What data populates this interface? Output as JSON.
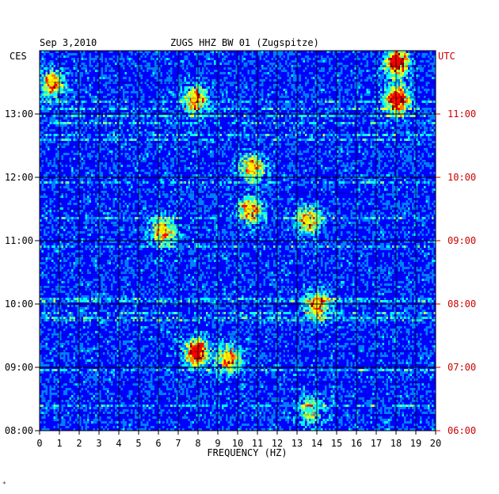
{
  "header": {
    "date": "Sep 3,2010",
    "station": "ZUGS HHZ BW 01 (Zugspitze)"
  },
  "chart_data": {
    "type": "heatmap",
    "title": "ZUGS HHZ BW 01 (Zugspitze)",
    "date": "Sep 3,2010",
    "xlabel": "FREQUENCY (HZ)",
    "xlim": [
      0,
      20
    ],
    "x_ticks": [
      "0",
      "1",
      "2",
      "3",
      "4",
      "5",
      "6",
      "7",
      "8",
      "9",
      "10",
      "11",
      "12",
      "13",
      "14",
      "15",
      "16",
      "17",
      "18",
      "19",
      "20"
    ],
    "left_axis": {
      "label": "CES",
      "ticks": [
        "08:00",
        "09:00",
        "10:00",
        "11:00",
        "12:00",
        "13:00"
      ],
      "range": [
        "08:00",
        "14:00"
      ]
    },
    "right_axis": {
      "label": "UTC",
      "ticks": [
        "06:00",
        "07:00",
        "08:00",
        "09:00",
        "10:00",
        "11:00"
      ],
      "range": [
        "06:00",
        "12:00"
      ]
    },
    "colorscale": [
      "#00007f",
      "#0000ff",
      "#007fff",
      "#00ffff",
      "#7fff7f",
      "#ffff00",
      "#ff7f00",
      "#ff0000",
      "#7f0000"
    ],
    "hotspots": [
      {
        "freq": 18.0,
        "time": "13:50",
        "intensity": "high"
      },
      {
        "freq": 18.0,
        "time": "13:15",
        "intensity": "high"
      },
      {
        "freq": 7.9,
        "time": "09:15",
        "intensity": "high"
      },
      {
        "freq": 9.5,
        "time": "09:10",
        "intensity": "medium"
      },
      {
        "freq": 10.6,
        "time": "11:30",
        "intensity": "medium"
      },
      {
        "freq": 13.5,
        "time": "11:20",
        "intensity": "medium"
      },
      {
        "freq": 7.8,
        "time": "13:15",
        "intensity": "medium"
      },
      {
        "freq": 6.2,
        "time": "11:10",
        "intensity": "medium"
      },
      {
        "freq": 10.7,
        "time": "12:10",
        "intensity": "medium"
      },
      {
        "freq": 0.6,
        "time": "13:30",
        "intensity": "medium"
      },
      {
        "freq": 14.0,
        "time": "10:00",
        "intensity": "medium"
      },
      {
        "freq": 13.6,
        "time": "08:20",
        "intensity": "low"
      }
    ]
  }
}
